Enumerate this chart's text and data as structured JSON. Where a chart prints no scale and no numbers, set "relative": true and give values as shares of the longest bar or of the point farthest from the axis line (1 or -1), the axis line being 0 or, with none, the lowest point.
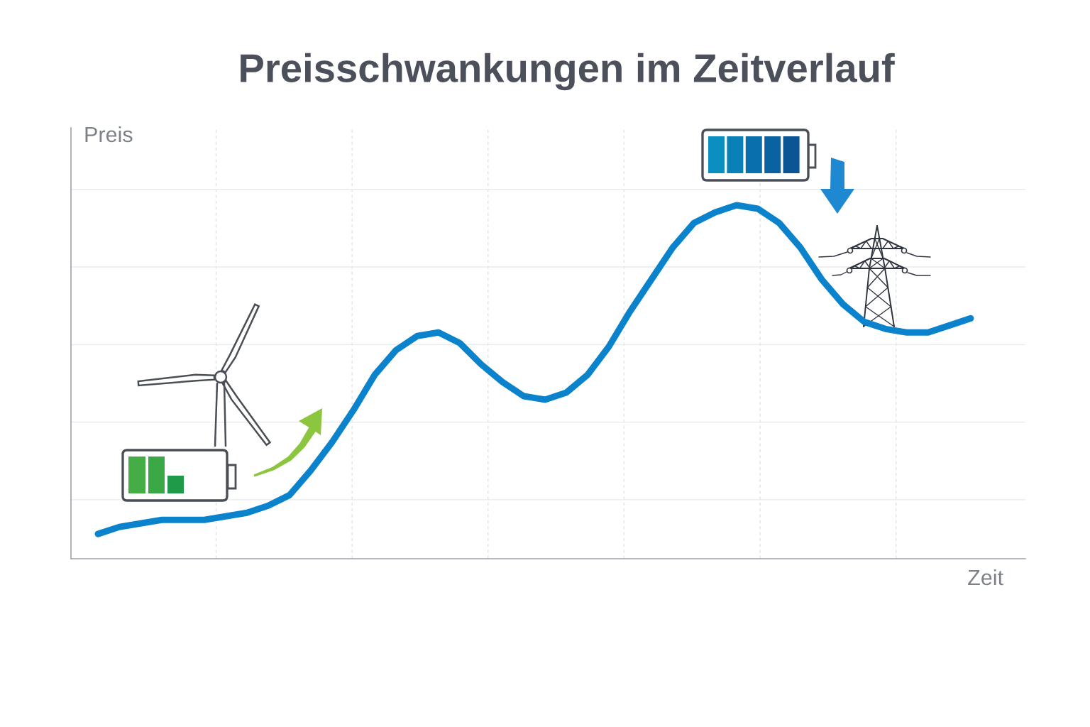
{
  "chart_data": {
    "type": "line",
    "title": "Preisschwankungen im Zeitverlauf",
    "xlabel": "Zeit",
    "ylabel": "Preis",
    "relative": true,
    "grid": true,
    "line_style": "solid",
    "categories": [
      null,
      null,
      null,
      null,
      null,
      null,
      null,
      null,
      null,
      null,
      null,
      null,
      null,
      null,
      null,
      null,
      null,
      null,
      null,
      null,
      null,
      null,
      null,
      null,
      null,
      null,
      null,
      null,
      null,
      null,
      null,
      null,
      null,
      null,
      null,
      null,
      null,
      null,
      null,
      null,
      null,
      null
    ],
    "series": [
      {
        "color": "#0a83cc",
        "values": [
          0.07,
          0.09,
          0.1,
          0.11,
          0.11,
          0.11,
          0.12,
          0.13,
          0.15,
          0.18,
          0.25,
          0.33,
          0.42,
          0.52,
          0.59,
          0.63,
          0.64,
          0.61,
          0.55,
          0.5,
          0.46,
          0.45,
          0.47,
          0.52,
          0.6,
          0.7,
          0.79,
          0.88,
          0.95,
          0.98,
          1.0,
          0.99,
          0.95,
          0.88,
          0.79,
          0.72,
          0.67,
          0.65,
          0.64,
          0.64,
          0.66,
          0.68
        ]
      }
    ]
  }
}
